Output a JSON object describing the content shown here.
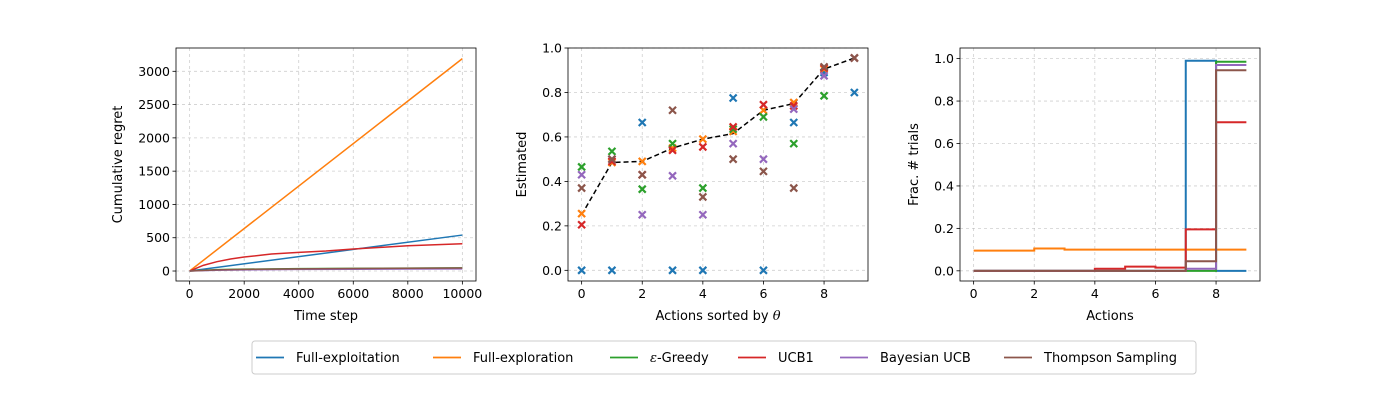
{
  "colors": {
    "Full-exploitation": "#1f77b4",
    "Full-exploration": "#ff7f0e",
    "eGreedy": "#2ca02c",
    "UCB1": "#d62728",
    "BayesianUCB": "#9467bd",
    "Thompson": "#8c564b",
    "true": "#000000"
  },
  "legend": {
    "placement": "bottom-center",
    "entries": [
      {
        "key": "Full-exploitation",
        "label": "Full-exploitation"
      },
      {
        "key": "Full-exploration",
        "label": "Full-exploration"
      },
      {
        "key": "eGreedy",
        "label": "ε-Greedy",
        "prefix": "ε",
        "rest": "-Greedy"
      },
      {
        "key": "UCB1",
        "label": "UCB1"
      },
      {
        "key": "BayesianUCB",
        "label": "Bayesian UCB"
      },
      {
        "key": "Thompson",
        "label": "Thompson Sampling"
      }
    ]
  },
  "chart_data": [
    {
      "type": "line",
      "xlabel": "Time step",
      "ylabel": "Cumulative regret",
      "xlim": [
        -500,
        10500
      ],
      "ylim": [
        -150,
        3350
      ],
      "xticks": [
        0,
        2000,
        4000,
        6000,
        8000,
        10000
      ],
      "yticks": [
        0,
        500,
        1000,
        1500,
        2000,
        2500,
        3000
      ],
      "grid": true,
      "series": [
        {
          "key": "Full-exploitation",
          "x": [
            0,
            10000
          ],
          "y": [
            0,
            540
          ]
        },
        {
          "key": "Full-exploration",
          "x": [
            0,
            10000
          ],
          "y": [
            0,
            3190
          ]
        },
        {
          "key": "eGreedy",
          "x": [
            0,
            1000,
            2000,
            4000,
            6000,
            8000,
            10000
          ],
          "y": [
            0,
            20,
            28,
            35,
            40,
            44,
            48
          ]
        },
        {
          "key": "UCB1",
          "x": [
            0,
            500,
            1000,
            1500,
            2000,
            3000,
            4000,
            5000,
            6000,
            7000,
            8000,
            9000,
            10000
          ],
          "y": [
            0,
            85,
            140,
            180,
            210,
            255,
            280,
            300,
            330,
            355,
            380,
            395,
            410
          ]
        },
        {
          "key": "BayesianUCB",
          "x": [
            0,
            1000,
            2000,
            4000,
            6000,
            8000,
            10000
          ],
          "y": [
            0,
            12,
            18,
            24,
            27,
            30,
            32
          ]
        },
        {
          "key": "Thompson",
          "x": [
            0,
            1000,
            2000,
            4000,
            6000,
            8000,
            10000
          ],
          "y": [
            0,
            18,
            25,
            32,
            37,
            41,
            45
          ]
        }
      ]
    },
    {
      "type": "scatter",
      "xlabel": "Actions sorted by θ",
      "xlabel_prefix": "Actions sorted by ",
      "xlabel_symbol": "θ",
      "ylabel": "Estimated",
      "xlim": [
        -0.45,
        9.45
      ],
      "ylim": [
        -0.048,
        1.0
      ],
      "xticks": [
        0,
        2,
        4,
        6,
        8
      ],
      "yticks": [
        0.0,
        0.2,
        0.4,
        0.6,
        0.8,
        1.0
      ],
      "ytick_labels": [
        "0.0",
        "0.2",
        "0.4",
        "0.6",
        "0.8",
        "1.0"
      ],
      "grid": true,
      "true_line": {
        "x": [
          0,
          1,
          2,
          3,
          4,
          5,
          6,
          7,
          8,
          9
        ],
        "y": [
          0.25,
          0.485,
          0.49,
          0.55,
          0.59,
          0.615,
          0.72,
          0.75,
          0.905,
          0.955
        ]
      },
      "series": [
        {
          "key": "Full-exploitation",
          "x": [
            0,
            1,
            2,
            3,
            4,
            5,
            6,
            7,
            8,
            9
          ],
          "y": [
            0.0,
            0.0,
            0.665,
            0.0,
            0.0,
            0.775,
            0.0,
            0.665,
            0.89,
            0.8
          ]
        },
        {
          "key": "Full-exploration",
          "x": [
            0,
            1,
            2,
            3,
            4,
            5,
            6,
            7,
            8,
            9
          ],
          "y": [
            0.255,
            0.485,
            0.49,
            0.55,
            0.59,
            0.625,
            0.72,
            0.755,
            0.905,
            0.955
          ]
        },
        {
          "key": "eGreedy",
          "x": [
            0,
            1,
            2,
            3,
            4,
            5,
            6,
            7,
            8,
            9
          ],
          "y": [
            0.465,
            0.535,
            0.365,
            0.57,
            0.37,
            0.635,
            0.69,
            0.57,
            0.785,
            0.955
          ]
        },
        {
          "key": "UCB1",
          "x": [
            0,
            1,
            2,
            3,
            4,
            5,
            6,
            7,
            8,
            9
          ],
          "y": [
            0.205,
            0.49,
            0.43,
            0.54,
            0.555,
            0.645,
            0.745,
            0.74,
            0.91,
            0.955
          ]
        },
        {
          "key": "BayesianUCB",
          "x": [
            0,
            1,
            2,
            3,
            4,
            5,
            6,
            7,
            8,
            9
          ],
          "y": [
            0.43,
            0.5,
            0.25,
            0.425,
            0.25,
            0.57,
            0.5,
            0.725,
            0.875,
            0.955
          ]
        },
        {
          "key": "Thompson",
          "x": [
            0,
            1,
            2,
            3,
            4,
            5,
            6,
            7,
            8,
            9
          ],
          "y": [
            0.37,
            0.5,
            0.43,
            0.72,
            0.33,
            0.5,
            0.445,
            0.37,
            0.915,
            0.955
          ]
        }
      ]
    },
    {
      "type": "line",
      "step": "post",
      "xlabel": "Actions",
      "ylabel": "Frac. # trials",
      "xlim": [
        -0.45,
        9.45
      ],
      "ylim": [
        -0.048,
        1.05
      ],
      "xticks": [
        0,
        2,
        4,
        6,
        8
      ],
      "yticks": [
        0.0,
        0.2,
        0.4,
        0.6,
        0.8,
        1.0
      ],
      "ytick_labels": [
        "0.0",
        "0.2",
        "0.4",
        "0.6",
        "0.8",
        "1.0"
      ],
      "grid": true,
      "series": [
        {
          "key": "Full-exploitation",
          "x": [
            0,
            1,
            2,
            3,
            4,
            5,
            6,
            7,
            8,
            9
          ],
          "y": [
            0,
            0,
            0,
            0,
            0,
            0,
            0,
            0.99,
            0,
            0
          ]
        },
        {
          "key": "Full-exploration",
          "x": [
            0,
            1,
            2,
            3,
            4,
            5,
            6,
            7,
            8,
            9
          ],
          "y": [
            0.095,
            0.095,
            0.105,
            0.1,
            0.1,
            0.1,
            0.1,
            0.1,
            0.1,
            0.1
          ]
        },
        {
          "key": "eGreedy",
          "x": [
            0,
            1,
            2,
            3,
            4,
            5,
            6,
            7,
            8,
            9
          ],
          "y": [
            0,
            0,
            0,
            0,
            0,
            0,
            0,
            0,
            0.985,
            0.985
          ]
        },
        {
          "key": "UCB1",
          "x": [
            0,
            1,
            2,
            3,
            4,
            5,
            6,
            7,
            8,
            9
          ],
          "y": [
            0,
            0,
            0,
            0,
            0.01,
            0.02,
            0.015,
            0.195,
            0.7,
            0.7
          ]
        },
        {
          "key": "BayesianUCB",
          "x": [
            0,
            1,
            2,
            3,
            4,
            5,
            6,
            7,
            8,
            9
          ],
          "y": [
            0,
            0,
            0,
            0,
            0,
            0,
            0,
            0.01,
            0.97,
            0.97
          ]
        },
        {
          "key": "Thompson",
          "x": [
            0,
            1,
            2,
            3,
            4,
            5,
            6,
            7,
            8,
            9
          ],
          "y": [
            0,
            0,
            0,
            0,
            0,
            0,
            0,
            0.045,
            0.945,
            0.945
          ]
        }
      ]
    }
  ]
}
